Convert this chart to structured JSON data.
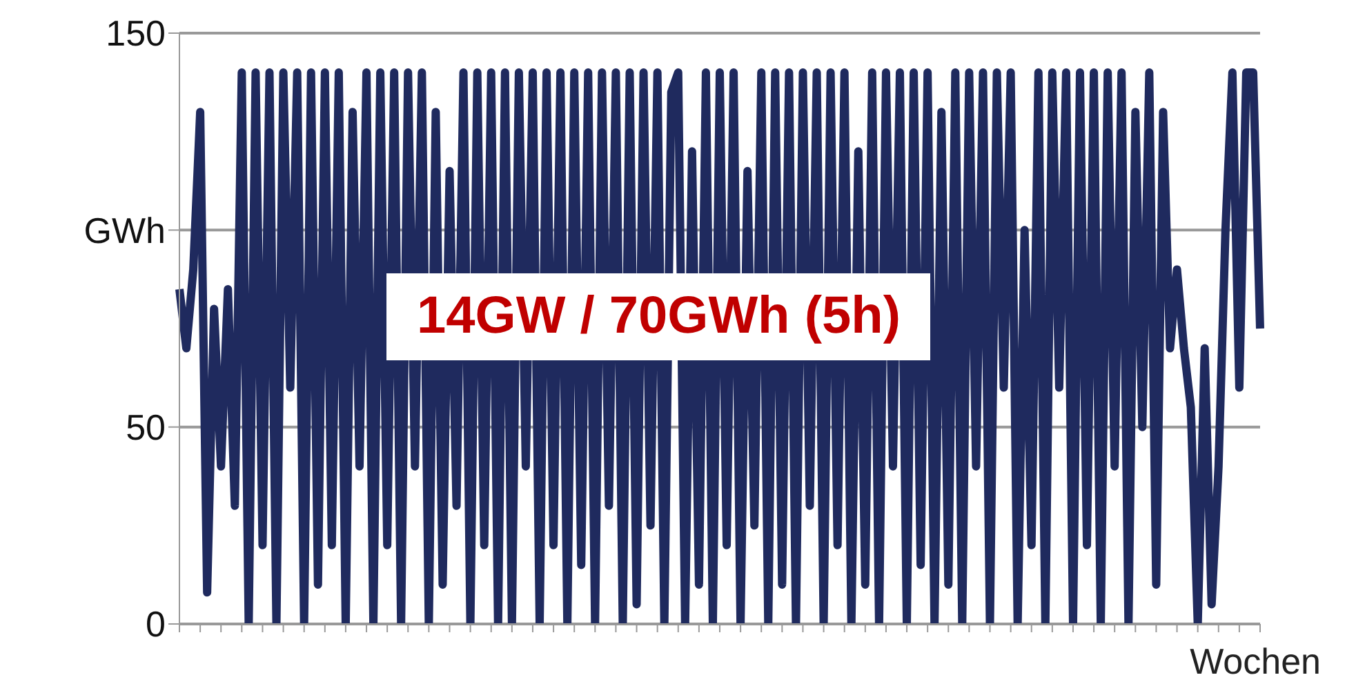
{
  "chart_data": {
    "type": "line",
    "xlabel": "Wochen",
    "annotations": [
      "14GW / 70GWh (5h)"
    ],
    "categories": [
      null,
      null,
      null,
      null,
      null,
      null,
      null,
      null,
      null,
      null,
      null,
      null,
      null,
      null,
      null,
      null,
      null,
      null,
      null,
      null,
      null,
      null,
      null,
      null,
      null,
      null,
      null,
      null,
      null,
      null,
      null,
      null,
      null,
      null,
      null,
      null,
      null,
      null,
      null,
      null,
      null,
      null,
      null,
      null,
      null,
      null,
      null,
      null,
      null,
      null,
      null,
      null,
      null,
      null,
      null,
      null,
      null,
      null,
      null,
      null,
      null,
      null,
      null,
      null,
      null,
      null,
      null,
      null,
      null,
      null,
      null,
      null,
      null,
      null,
      null,
      null,
      null,
      null,
      null,
      null,
      null,
      null,
      null,
      null,
      null,
      null,
      null,
      null,
      null,
      null,
      null,
      null,
      null,
      null,
      null,
      null,
      null,
      null,
      null,
      null,
      null,
      null,
      null,
      null,
      null,
      null,
      null,
      null,
      null,
      null,
      null,
      null,
      null,
      null,
      null,
      null,
      null,
      null,
      null,
      null,
      null,
      null,
      null,
      null,
      null,
      null,
      null,
      null,
      null,
      null,
      null,
      null,
      null,
      null,
      null,
      null,
      null,
      null,
      null,
      null,
      null,
      null,
      null,
      null,
      null,
      null,
      null,
      null,
      null,
      null,
      null,
      null,
      null,
      null,
      null,
      null,
      null
    ],
    "series": [
      {
        "color": "#1f2a5e",
        "values": [
          85,
          70,
          90,
          130,
          8,
          80,
          40,
          85,
          30,
          140,
          0,
          140,
          20,
          140,
          0,
          140,
          60,
          140,
          0,
          140,
          10,
          140,
          20,
          140,
          0,
          130,
          40,
          140,
          0,
          140,
          20,
          140,
          0,
          140,
          40,
          140,
          0,
          130,
          10,
          115,
          30,
          140,
          0,
          140,
          20,
          140,
          0,
          140,
          0,
          140,
          40,
          140,
          0,
          140,
          20,
          140,
          0,
          140,
          15,
          140,
          0,
          140,
          30,
          140,
          0,
          140,
          5,
          140,
          25,
          140,
          0,
          135,
          140,
          0,
          120,
          10,
          140,
          0,
          140,
          20,
          140,
          0,
          115,
          25,
          140,
          0,
          140,
          10,
          140,
          0,
          140,
          30,
          140,
          0,
          140,
          20,
          140,
          0,
          120,
          10,
          140,
          0,
          140,
          40,
          140,
          0,
          140,
          15,
          140,
          0,
          130,
          10,
          140,
          0,
          140,
          40,
          140,
          0,
          140,
          60,
          140,
          0,
          100,
          20,
          140,
          0,
          140,
          60,
          140,
          0,
          140,
          20,
          140,
          0,
          140,
          40,
          140,
          0,
          130,
          50,
          140,
          10,
          130,
          70,
          90,
          70,
          55,
          0,
          70,
          5,
          40,
          100,
          140,
          60,
          140,
          140,
          75
        ]
      }
    ],
    "ylim": [
      0,
      150
    ],
    "yticks": [
      0,
      50,
      {
        "value": 100,
        "label": "GWh"
      },
      150
    ],
    "tick_labels": "y",
    "grid": "y",
    "marker": "none",
    "line_style": "solid"
  }
}
